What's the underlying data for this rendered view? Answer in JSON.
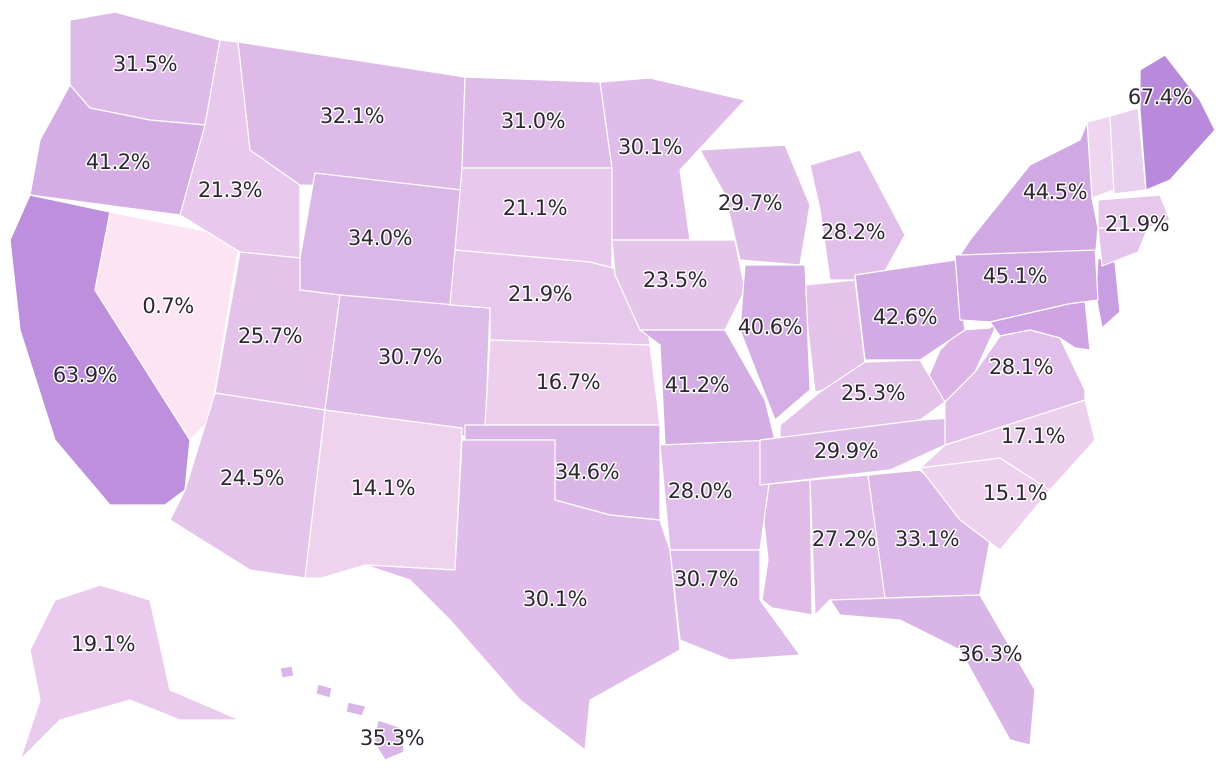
{
  "chart_data": {
    "type": "choropleth",
    "values": [
      31.5,
      41.2,
      63.9,
      0.7,
      21.3,
      32.1,
      34.0,
      25.7,
      24.5,
      30.7,
      14.1,
      31.0,
      21.1,
      21.9,
      16.7,
      34.6,
      30.1,
      30.1,
      23.5,
      41.2,
      28.0,
      30.7,
      29.7,
      40.6,
      28.2,
      42.6,
      25.3,
      29.9,
      27.2,
      33.1,
      36.3,
      15.1,
      17.1,
      28.1,
      45.1,
      44.5,
      21.9,
      67.4,
      19.1,
      35.3
    ],
    "value_labels": [
      "31.5%",
      "41.2%",
      "63.9%",
      "0.7%",
      "21.3%",
      "32.1%",
      "34.0%",
      "25.7%",
      "24.5%",
      "30.7%",
      "14.1%",
      "31.0%",
      "21.1%",
      "21.9%",
      "16.7%",
      "34.6%",
      "30.1%",
      "30.1%",
      "23.5%",
      "41.2%",
      "28.0%",
      "30.7%",
      "29.7%",
      "40.6%",
      "28.2%",
      "42.6%",
      "25.3%",
      "29.9%",
      "27.2%",
      "33.1%",
      "36.3%",
      "15.1%",
      "17.1%",
      "28.1%",
      "45.1%",
      "44.5%",
      "21.9%",
      "67.4%",
      "19.1%",
      "35.3%"
    ],
    "color_scale": [
      "#fde4f3",
      "#b98adc"
    ]
  }
}
